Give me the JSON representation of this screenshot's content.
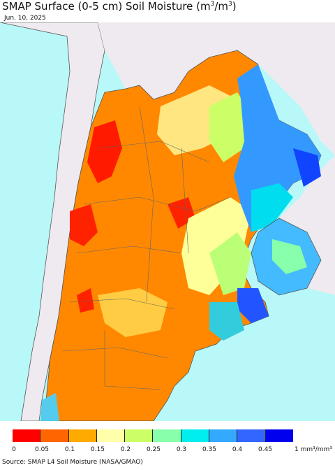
{
  "title": {
    "prefix": "SMAP Surface (0-5 cm) Soil Moisture (m",
    "sup1": "3",
    "mid": "/m",
    "sup2": "3",
    "suffix": ")"
  },
  "date": "Jun. 10, 2025",
  "legend": {
    "colors": [
      "#ff0000",
      "#ff6600",
      "#ffaa00",
      "#ffffaa",
      "#ccff66",
      "#88ffaa",
      "#00eeee",
      "#33aaff",
      "#3366ff",
      "#0000ee"
    ],
    "ticks": [
      "0",
      "0.05",
      "0.1",
      "0.15",
      "0.2",
      "0.25",
      "0.3",
      "0.35",
      "0.4",
      "0.45"
    ],
    "unit": "1 mm³/mm³"
  },
  "source": "Source: SMAP L4 Soil Moisture (NASA/GMAO)",
  "colors": {
    "ocean": "#b8f8f8",
    "land_outside": "#efeaef",
    "border": "#555555"
  }
}
